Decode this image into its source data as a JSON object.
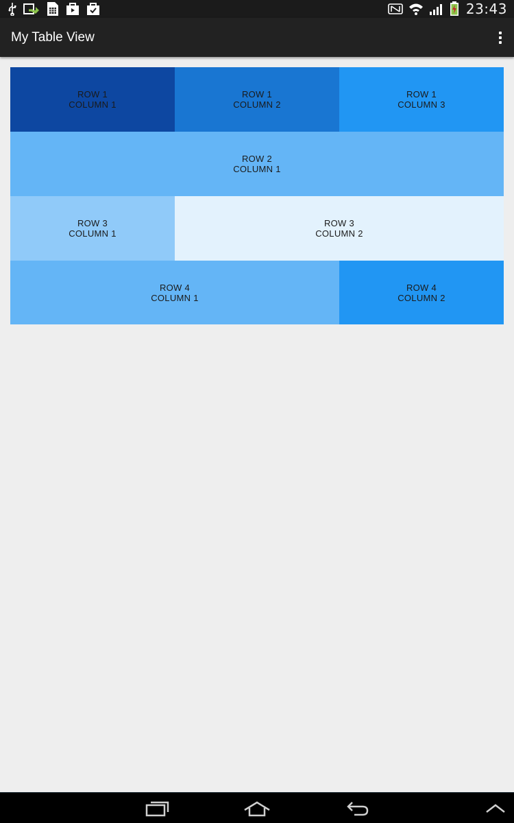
{
  "status_bar": {
    "time": "23:43",
    "left_icons": [
      "usb-icon",
      "sync-icon",
      "sim-card-icon",
      "media-bag-icon",
      "task-bag-icon"
    ],
    "right_icons": [
      "nfc-icon",
      "wifi-icon",
      "signal-icon",
      "battery-charging-icon"
    ]
  },
  "action_bar": {
    "title": "My Table View",
    "overflow_icon": "overflow-menu-icon"
  },
  "table": {
    "cells": [
      {
        "row": "ROW 1",
        "col": "COLUMN 1",
        "color": "#0d47a1"
      },
      {
        "row": "ROW 1",
        "col": "COLUMN 2",
        "color": "#1976d2"
      },
      {
        "row": "ROW 1",
        "col": "COLUMN 3",
        "color": "#2196f3"
      },
      {
        "row": "ROW 2",
        "col": "COLUMN 1",
        "color": "#64b5f6"
      },
      {
        "row": "ROW 3",
        "col": "COLUMN 1",
        "color": "#90caf9"
      },
      {
        "row": "ROW 3",
        "col": "COLUMN 2",
        "color": "#e3f2fd"
      },
      {
        "row": "ROW 4",
        "col": "COLUMN 1",
        "color": "#64b5f6"
      },
      {
        "row": "ROW 4",
        "col": "COLUMN 2",
        "color": "#2196f3"
      }
    ]
  },
  "nav_bar": {
    "buttons": [
      "recent-apps-icon",
      "home-icon",
      "back-icon",
      "chevron-up-icon"
    ]
  },
  "colors": {
    "status_bar_bg": "#1b1b1b",
    "action_bar_bg": "#222222",
    "page_bg": "#eeeeee",
    "nav_bar_bg": "#000000"
  }
}
